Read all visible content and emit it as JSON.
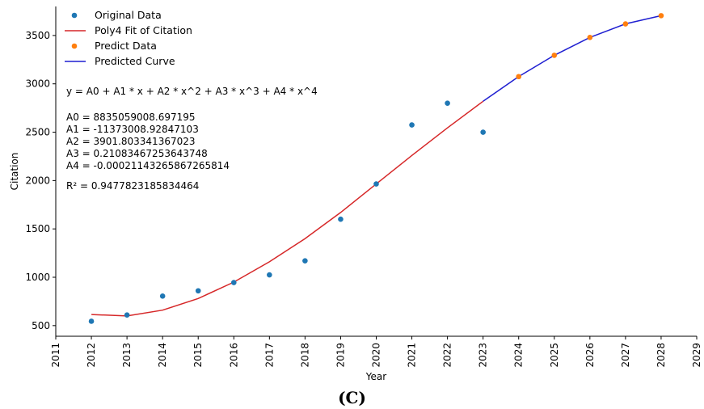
{
  "chart_data": {
    "type": "line",
    "xlabel": "Year",
    "ylabel": "Citation",
    "xlim": [
      2011,
      2029
    ],
    "ylim": [
      390,
      3800
    ],
    "xticks": [
      2011,
      2012,
      2013,
      2014,
      2015,
      2016,
      2017,
      2018,
      2019,
      2020,
      2021,
      2022,
      2023,
      2024,
      2025,
      2026,
      2027,
      2028,
      2029
    ],
    "yticks": [
      500,
      1000,
      1500,
      2000,
      2500,
      3000,
      3500
    ],
    "legend_position": "top-left",
    "grid": false,
    "series": [
      {
        "name": "Original Data",
        "kind": "scatter",
        "color": "#1f77b4",
        "x": [
          2012,
          2013,
          2014,
          2015,
          2016,
          2017,
          2018,
          2019,
          2020,
          2021,
          2022,
          2023
        ],
        "y": [
          545,
          610,
          805,
          860,
          945,
          1025,
          1170,
          1600,
          1965,
          2575,
          2800,
          2500
        ]
      },
      {
        "name": "Poly4 Fit of  Citation",
        "kind": "line",
        "color": "#d62728",
        "x": [
          2012,
          2013,
          2014,
          2015,
          2016,
          2017,
          2018,
          2019,
          2020,
          2021,
          2022,
          2023
        ],
        "y": [
          615,
          600,
          660,
          780,
          950,
          1160,
          1400,
          1670,
          1965,
          2260,
          2545,
          2820
        ]
      },
      {
        "name": "Predict Data",
        "kind": "scatter",
        "color": "#ff7f0e",
        "x": [
          2024,
          2025,
          2026,
          2027,
          2028
        ],
        "y": [
          3075,
          3295,
          3480,
          3620,
          3705
        ]
      },
      {
        "name": "Predicted Curve",
        "kind": "line",
        "color": "#1f1fd1",
        "x": [
          2023,
          2024,
          2025,
          2026,
          2027,
          2028
        ],
        "y": [
          2820,
          3075,
          3295,
          3480,
          3620,
          3705
        ]
      }
    ],
    "annotations": {
      "equation": "y = A0 + A1 * x + A2 * x^2 + A3 * x^3 + A4 * x^4",
      "coefficients": [
        "A0 = 8835059008.697195",
        "A1 = -11373008.92847103",
        "A2 = 3901.803341367023",
        "A3 = 0.21083467253643748",
        "A4 = -0.00021143265867265814"
      ],
      "r_squared": "R² = 0.9477823185834464"
    }
  },
  "caption": "(C)"
}
